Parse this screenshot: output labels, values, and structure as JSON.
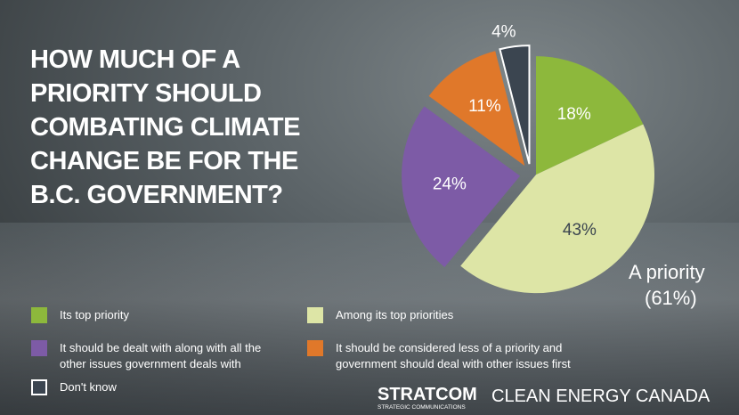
{
  "chart_data": {
    "type": "pie",
    "title": "HOW MUCH OF A PRIORITY SHOULD COMBATING CLIMATE CHANGE BE FOR THE B.C. GOVERNMENT?",
    "categories": [
      "Its top priority",
      "Among its top priorities",
      "It should be dealt with along with all the other issues government deals with",
      "It should be considered less of a priority and government should deal with other issues first",
      "Don't know"
    ],
    "values": [
      18,
      43,
      24,
      11,
      4
    ],
    "value_labels": [
      "18%",
      "43%",
      "24%",
      "11%",
      "4%"
    ],
    "colors": [
      "#8db83c",
      "#dde5a6",
      "#7d5ba6",
      "#e0782a",
      "#3b4550"
    ],
    "annotations": [
      "A priority",
      "(61%)"
    ],
    "footer": [
      "STRATCOM",
      "STRATEGIC COMMUNICATIONS",
      "CLEAN ENERGY CANADA"
    ]
  }
}
